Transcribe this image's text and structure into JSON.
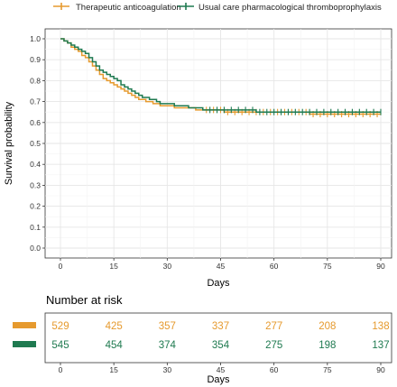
{
  "chart_data": [
    {
      "type": "line",
      "subtype": "kaplan-meier step",
      "xlabel": "Days",
      "ylabel": "Survival probability",
      "xlim": [
        0,
        90
      ],
      "ylim": [
        0,
        1
      ],
      "x_ticks": [
        "0",
        "15",
        "30",
        "45",
        "60",
        "75",
        "90"
      ],
      "y_ticks": [
        "0.0",
        "0.1",
        "0.2",
        "0.3",
        "0.4",
        "0.5",
        "0.6",
        "0.7",
        "0.8",
        "0.9",
        "1.0"
      ],
      "legend_position": "top",
      "grid": true,
      "series": [
        {
          "name": "Therapeutic anticoagulation",
          "color": "#e69a2e",
          "x": [
            0,
            1,
            2,
            3,
            4,
            5,
            6,
            7,
            8,
            9,
            10,
            11,
            12,
            13,
            14,
            15,
            16,
            17,
            18,
            19,
            20,
            21,
            22,
            23,
            24,
            25,
            26,
            27,
            28,
            29,
            30,
            32,
            34,
            36,
            38,
            40,
            43,
            46,
            50,
            55,
            60,
            65,
            70,
            75,
            80,
            85,
            90
          ],
          "y": [
            1.0,
            0.99,
            0.98,
            0.96,
            0.95,
            0.94,
            0.92,
            0.91,
            0.89,
            0.87,
            0.85,
            0.83,
            0.81,
            0.8,
            0.79,
            0.78,
            0.77,
            0.76,
            0.75,
            0.74,
            0.73,
            0.72,
            0.71,
            0.71,
            0.7,
            0.7,
            0.69,
            0.69,
            0.68,
            0.68,
            0.68,
            0.67,
            0.67,
            0.67,
            0.66,
            0.66,
            0.66,
            0.65,
            0.65,
            0.65,
            0.65,
            0.65,
            0.64,
            0.64,
            0.64,
            0.64,
            0.64
          ],
          "censor_x": [
            41,
            43,
            45,
            47,
            49,
            51,
            53,
            55,
            57,
            59,
            61,
            63,
            65,
            67,
            69,
            71,
            73,
            75,
            77,
            79,
            81,
            83,
            85,
            87,
            89
          ]
        },
        {
          "name": "Usual care pharmacological thromboprophylaxis",
          "color": "#1f7a50",
          "x": [
            0,
            1,
            2,
            3,
            4,
            5,
            6,
            7,
            8,
            9,
            10,
            11,
            12,
            13,
            14,
            15,
            16,
            17,
            18,
            19,
            20,
            21,
            22,
            23,
            24,
            25,
            26,
            27,
            28,
            29,
            30,
            32,
            34,
            36,
            38,
            40,
            43,
            46,
            50,
            55,
            60,
            65,
            70,
            75,
            80,
            85,
            90
          ],
          "y": [
            1.0,
            0.99,
            0.98,
            0.97,
            0.96,
            0.95,
            0.94,
            0.93,
            0.91,
            0.89,
            0.87,
            0.85,
            0.84,
            0.83,
            0.82,
            0.81,
            0.8,
            0.78,
            0.77,
            0.76,
            0.75,
            0.74,
            0.73,
            0.72,
            0.72,
            0.71,
            0.71,
            0.7,
            0.69,
            0.69,
            0.69,
            0.68,
            0.68,
            0.67,
            0.67,
            0.66,
            0.66,
            0.66,
            0.66,
            0.65,
            0.65,
            0.65,
            0.65,
            0.65,
            0.65,
            0.65,
            0.65
          ],
          "censor_x": [
            42,
            44,
            46,
            48,
            50,
            52,
            54,
            56,
            58,
            60,
            62,
            64,
            66,
            68,
            70,
            72,
            74,
            76,
            78,
            80,
            82,
            84,
            86,
            88,
            90
          ]
        }
      ]
    },
    {
      "type": "table",
      "title": "Number at risk",
      "xlabel": "Days",
      "x": [
        0,
        15,
        30,
        45,
        60,
        75,
        90
      ],
      "x_ticks": [
        "0",
        "15",
        "30",
        "45",
        "60",
        "75",
        "90"
      ],
      "series": [
        {
          "color": "#e69a2e",
          "values": [
            "529",
            "425",
            "357",
            "337",
            "277",
            "208",
            "138"
          ]
        },
        {
          "color": "#1f7a50",
          "values": [
            "545",
            "454",
            "374",
            "354",
            "275",
            "198",
            "137"
          ]
        }
      ]
    }
  ]
}
